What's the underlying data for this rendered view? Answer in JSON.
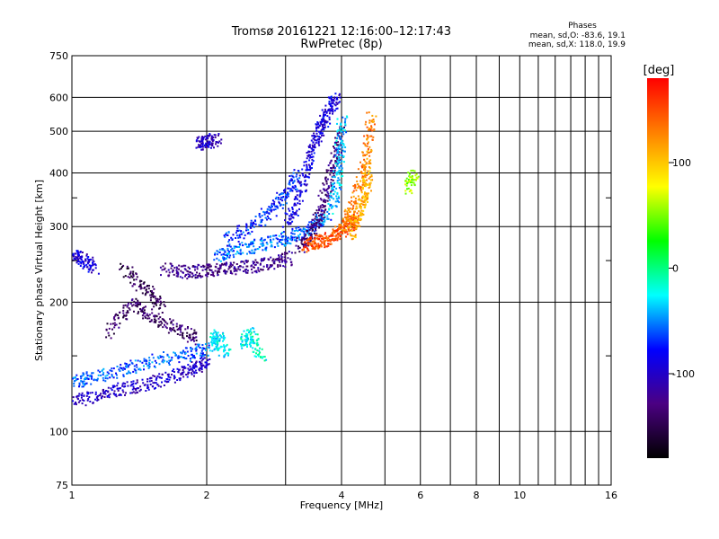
{
  "chart_data": {
    "type": "scatter",
    "title": "Tromsø 20161221 12:16:00–12:17:43",
    "subtitle": "RwPretec (8p)",
    "xlabel": "Frequency [MHz]",
    "ylabel": "Stationary phase Virtual Height [km]",
    "xscale": "log",
    "yscale": "log",
    "xlim": [
      1,
      16
    ],
    "ylim": [
      75,
      750
    ],
    "x_ticks": [
      1,
      2,
      4,
      6,
      8,
      10,
      16
    ],
    "x_minor_ticks": [
      3,
      5,
      7,
      9,
      11,
      12,
      13,
      14,
      15
    ],
    "y_ticks": [
      75,
      100,
      200,
      300,
      400,
      500,
      600,
      750
    ],
    "y_minor_ticks": [
      150,
      250,
      350
    ],
    "grid": true,
    "stats": {
      "heading": "Phases",
      "o_line": "mean, sd,O: -83.6, 19.1",
      "x_line": "mean, sd,X: 118.0, 19.9"
    },
    "colorbar": {
      "label": "[deg]",
      "range": [
        -180,
        180
      ],
      "ticks": [
        100,
        0,
        -100
      ],
      "colors": [
        "#ff0000",
        "#ff8000",
        "#ffff00",
        "#00ff00",
        "#00ffff",
        "#0000ff",
        "#4b0082",
        "#000000"
      ]
    },
    "series": [
      {
        "traces": [
          {
            "x": [
              1.0,
              1.15,
              1.3,
              1.5,
              1.7,
              1.9,
              2.0
            ],
            "y": [
              118,
              122,
              126,
              130,
              136,
              142,
              148
            ],
            "phase": -100
          },
          {
            "x": [
              1.0,
              1.1,
              1.3,
              1.5,
              1.8,
              2.0
            ],
            "y": [
              130,
              134,
              140,
              146,
              152,
              156
            ],
            "phase": -60
          },
          {
            "x": [
              1.2,
              1.35,
              1.5,
              1.7,
              1.9
            ],
            "y": [
              170,
              200,
              185,
              175,
              165
            ],
            "phase": -140
          },
          {
            "x": [
              1.3,
              1.45,
              1.6
            ],
            "y": [
              240,
              215,
              195
            ],
            "phase": -150
          },
          {
            "x": [
              1.0,
              1.05,
              1.12
            ],
            "y": [
              258,
              252,
              242
            ],
            "phase": -95
          },
          {
            "x": [
              1.6,
              1.8,
              2.0,
              2.2,
              2.5,
              2.8,
              3.1
            ],
            "y": [
              240,
              236,
              238,
              240,
              243,
              248,
              255
            ],
            "phase": -125
          },
          {
            "x": [
              2.1,
              2.3,
              2.6,
              2.9,
              3.2,
              3.5,
              3.7
            ],
            "y": [
              258,
              265,
              272,
              280,
              290,
              305,
              320
            ],
            "phase": -55
          },
          {
            "x": [
              2.2,
              2.5,
              2.8,
              3.0,
              3.2
            ],
            "y": [
              280,
              300,
              330,
              360,
              400
            ],
            "phase": -70
          },
          {
            "x": [
              1.9,
              2.0,
              2.1
            ],
            "y": [
              470,
              475,
              480
            ],
            "phase": -100
          },
          {
            "x": [
              2.05,
              2.1,
              2.2
            ],
            "y": [
              160,
              168,
              150
            ],
            "phase": -30
          },
          {
            "x": [
              2.4,
              2.5,
              2.65
            ],
            "y": [
              160,
              170,
              150
            ],
            "phase": -20
          },
          {
            "x": [
              3.0,
              3.2,
              3.35,
              3.5,
              3.6,
              3.75,
              3.9
            ],
            "y": [
              300,
              350,
              420,
              480,
              520,
              570,
              600
            ],
            "phase": -90
          },
          {
            "x": [
              3.2,
              3.4,
              3.55,
              3.7,
              3.85,
              3.95
            ],
            "y": [
              270,
              290,
              320,
              370,
              430,
              500
            ],
            "phase": -130
          },
          {
            "x": [
              3.8,
              3.9,
              3.95,
              4.0
            ],
            "y": [
              330,
              380,
              450,
              540
            ],
            "phase": -40
          },
          {
            "x": [
              3.3,
              3.5,
              3.7,
              3.9,
              4.1,
              4.3
            ],
            "y": [
              272,
              276,
              282,
              290,
              300,
              312
            ],
            "phase": 150
          },
          {
            "x": [
              4.0,
              4.2,
              4.4,
              4.55,
              4.65
            ],
            "y": [
              300,
              330,
              380,
              450,
              550
            ],
            "phase": 130
          },
          {
            "x": [
              4.2,
              4.35,
              4.5,
              4.6
            ],
            "y": [
              290,
              320,
              360,
              420
            ],
            "phase": 110
          },
          {
            "x": [
              5.6,
              5.8
            ],
            "y": [
              370,
              400
            ],
            "phase": 60
          }
        ]
      }
    ]
  }
}
